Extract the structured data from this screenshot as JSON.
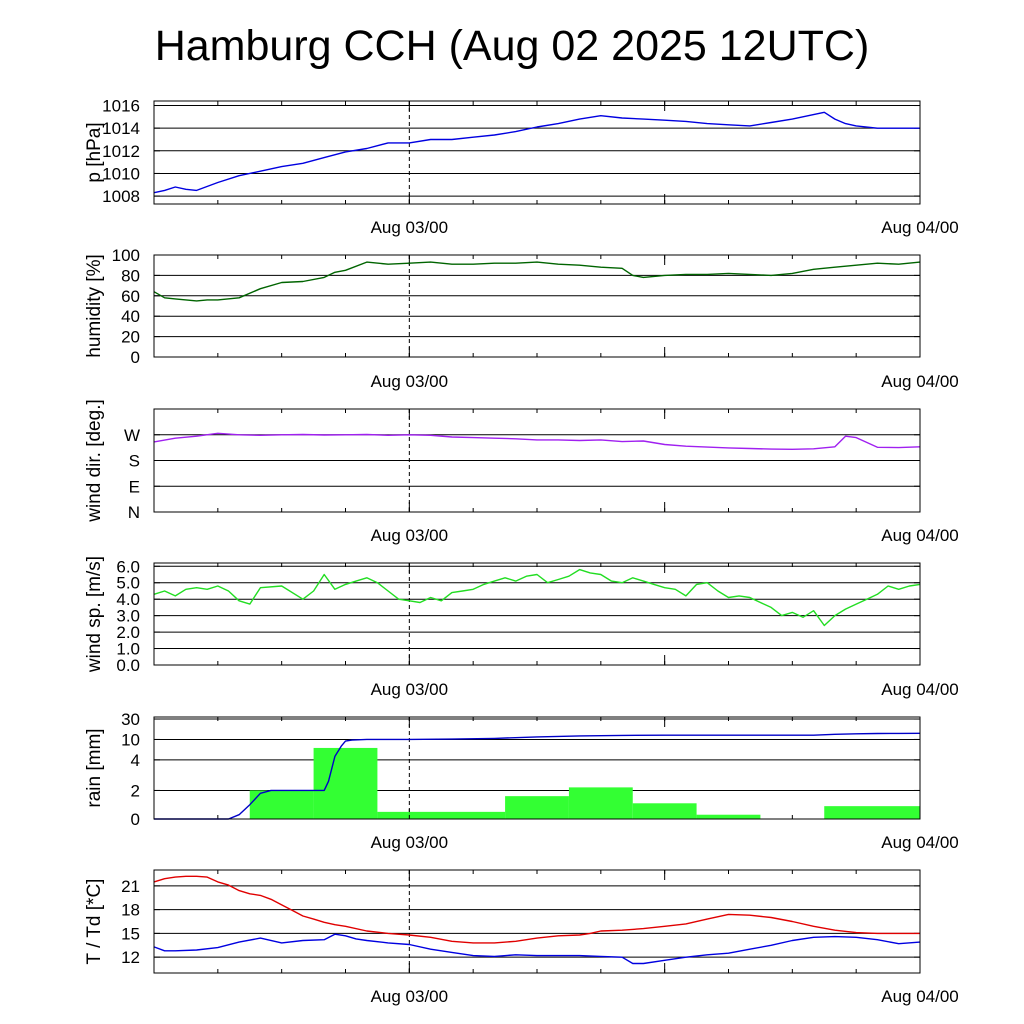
{
  "title": "Hamburg CCH (Aug 02 2025 12UTC)",
  "chart_data": [
    {
      "id": "pressure",
      "type": "line",
      "ylabel": "p [hPa]",
      "yticks": [
        1008,
        1010,
        1012,
        1014,
        1016
      ],
      "ylim": [
        1007.3,
        1016.4
      ],
      "x_range_hours": [
        0,
        36
      ],
      "xtick_labels": [
        "Aug 03/00",
        "Aug 04/00"
      ],
      "series": [
        {
          "color": "#0000e0",
          "x": [
            0,
            0.5,
            1,
            1.5,
            2,
            3,
            4,
            5,
            6,
            7,
            8,
            9,
            10,
            11,
            12,
            13,
            14,
            15,
            16,
            17,
            18,
            19,
            20,
            21,
            22,
            23,
            24,
            25,
            26,
            27,
            28,
            29,
            30,
            31,
            31.5,
            32,
            32.5,
            33,
            34,
            35,
            36
          ],
          "y": [
            1008.3,
            1008.5,
            1008.8,
            1008.6,
            1008.5,
            1009.2,
            1009.8,
            1010.2,
            1010.6,
            1010.9,
            1011.4,
            1011.9,
            1012.2,
            1012.7,
            1012.7,
            1013.0,
            1013.0,
            1013.2,
            1013.4,
            1013.7,
            1014.1,
            1014.4,
            1014.8,
            1015.1,
            1014.9,
            1014.8,
            1014.7,
            1014.6,
            1014.4,
            1014.3,
            1014.2,
            1014.5,
            1014.8,
            1015.2,
            1015.4,
            1014.8,
            1014.4,
            1014.2,
            1014.0,
            1014.0,
            1014.0
          ]
        }
      ]
    },
    {
      "id": "humidity",
      "type": "line",
      "ylabel": "humidity [%]",
      "yticks": [
        0,
        20,
        40,
        60,
        80,
        100
      ],
      "ylim": [
        0,
        100
      ],
      "x_range_hours": [
        0,
        36
      ],
      "xtick_labels": [
        "Aug 03/00",
        "Aug 04/00"
      ],
      "series": [
        {
          "color": "#006400",
          "x": [
            0,
            0.5,
            1,
            2,
            2.5,
            3,
            4,
            5,
            6,
            7,
            8,
            8.5,
            9,
            10,
            11,
            12,
            13,
            14,
            15,
            16,
            17,
            18,
            19,
            20,
            21,
            22,
            22.5,
            23,
            24,
            25,
            26,
            27,
            28,
            29,
            30,
            31,
            32,
            33,
            34,
            35,
            36
          ],
          "y": [
            64,
            58,
            57,
            55,
            56,
            56,
            58,
            67,
            73,
            74,
            78,
            83,
            85,
            93,
            91,
            92,
            93,
            91,
            91,
            92,
            92,
            93,
            91,
            90,
            88,
            87,
            80,
            78,
            80,
            81,
            81,
            82,
            81,
            80,
            82,
            86,
            88,
            90,
            92,
            91,
            93
          ]
        }
      ]
    },
    {
      "id": "wind_direction",
      "type": "line",
      "ylabel": "wind dir. [deg.]",
      "ytick_labels": [
        "N",
        "E",
        "S",
        "W"
      ],
      "yticks": [
        0,
        90,
        180,
        270
      ],
      "ylim": [
        0,
        360
      ],
      "x_range_hours": [
        0,
        36
      ],
      "xtick_labels": [
        "Aug 03/00",
        "Aug 04/00"
      ],
      "series": [
        {
          "color": "#a020f0",
          "x": [
            0,
            1,
            2,
            3,
            4,
            5,
            6,
            7,
            8,
            9,
            10,
            11,
            12,
            13,
            14,
            15,
            16,
            17,
            18,
            19,
            20,
            21,
            22,
            23,
            24,
            25,
            26,
            27,
            28,
            29,
            30,
            31,
            32,
            32.5,
            33,
            34,
            35,
            36
          ],
          "y": [
            245,
            258,
            265,
            275,
            270,
            268,
            270,
            271,
            269,
            270,
            271,
            268,
            270,
            268,
            262,
            260,
            258,
            256,
            252,
            252,
            250,
            252,
            246,
            248,
            236,
            230,
            227,
            224,
            222,
            220,
            219,
            221,
            228,
            265,
            260,
            226,
            225,
            228
          ]
        }
      ]
    },
    {
      "id": "wind_speed",
      "type": "line",
      "ylabel": "wind sp. [m/s]",
      "yticks": [
        0.0,
        1.0,
        2.0,
        3.0,
        4.0,
        5.0,
        6.0
      ],
      "ytick_labels": [
        "0.0",
        "1.0",
        "2.0",
        "3.0",
        "4.0",
        "5.0",
        "6.0"
      ],
      "ylim": [
        0,
        6.2
      ],
      "x_range_hours": [
        0,
        36
      ],
      "xtick_labels": [
        "Aug 03/00",
        "Aug 04/00"
      ],
      "series": [
        {
          "color": "#22dd22",
          "x": [
            0,
            0.5,
            1,
            1.5,
            2,
            2.5,
            3,
            3.5,
            4,
            4.5,
            5,
            6,
            7,
            7.5,
            8,
            8.5,
            9,
            9.5,
            10,
            10.5,
            11,
            11.5,
            12,
            12.5,
            13,
            13.5,
            14,
            14.5,
            15,
            15.5,
            16,
            16.5,
            17,
            17.5,
            18,
            18.5,
            19,
            19.5,
            20,
            20.5,
            21,
            21.5,
            22,
            22.5,
            23,
            23.5,
            24,
            24.5,
            25,
            25.5,
            26,
            26.5,
            27,
            27.5,
            28,
            28.5,
            29,
            29.5,
            30,
            30.5,
            31,
            31.5,
            32,
            32.5,
            33,
            33.5,
            34,
            34.5,
            35,
            35.5,
            36
          ],
          "y": [
            4.3,
            4.5,
            4.2,
            4.6,
            4.7,
            4.6,
            4.8,
            4.5,
            3.9,
            3.7,
            4.7,
            4.8,
            4.0,
            4.5,
            5.5,
            4.6,
            4.9,
            5.1,
            5.3,
            5.0,
            4.5,
            4.0,
            3.9,
            3.8,
            4.1,
            3.9,
            4.4,
            4.5,
            4.6,
            4.9,
            5.1,
            5.3,
            5.1,
            5.4,
            5.5,
            5.0,
            5.2,
            5.4,
            5.8,
            5.6,
            5.5,
            5.1,
            5.0,
            5.3,
            5.1,
            4.9,
            4.7,
            4.6,
            4.2,
            4.9,
            5.0,
            4.5,
            4.1,
            4.2,
            4.1,
            3.8,
            3.5,
            3.0,
            3.2,
            2.9,
            3.3,
            2.4,
            3.0,
            3.4,
            3.7,
            4.0,
            4.3,
            4.8,
            4.6,
            4.8,
            4.9
          ]
        }
      ]
    },
    {
      "id": "rain",
      "type": "bar+line",
      "ylabel": "rain [mm]",
      "yticks": [
        0,
        2,
        4,
        10,
        30
      ],
      "x_range_hours": [
        0,
        36
      ],
      "xtick_labels": [
        "Aug 03/00",
        "Aug 04/00"
      ],
      "bars": {
        "color": "#33ff33",
        "intervals_hours": [
          [
            4.5,
            7.5
          ],
          [
            7.5,
            10.5
          ],
          [
            10.5,
            12
          ],
          [
            12,
            16.5
          ],
          [
            16.5,
            19.5
          ],
          [
            19.5,
            22.5
          ],
          [
            22.5,
            25.5
          ],
          [
            25.5,
            28.5
          ],
          [
            28.5,
            31.5
          ],
          [
            31.5,
            36
          ]
        ],
        "values": [
          2.0,
          7.5,
          0.5,
          0.5,
          1.6,
          2.2,
          1.1,
          0.3,
          0.0,
          0.9
        ]
      },
      "series": [
        {
          "color": "#0000c8",
          "x": [
            0,
            3.5,
            4,
            4.5,
            5,
            5.5,
            7,
            8,
            8.2,
            8.5,
            8.8,
            9,
            9.3,
            10,
            11,
            12,
            14,
            16,
            18,
            20,
            22,
            24,
            26,
            28,
            30,
            31,
            32,
            33,
            34,
            35,
            36
          ],
          "y": [
            0,
            0,
            0.3,
            1.0,
            1.8,
            2.0,
            2.0,
            2.0,
            2.6,
            5.0,
            8.0,
            9.5,
            9.8,
            10.0,
            10.0,
            10.0,
            10.3,
            11.0,
            12.5,
            13.5,
            14.0,
            14.2,
            14.2,
            14.2,
            14.2,
            14.2,
            15.0,
            15.5,
            15.8,
            15.9,
            16.0
          ]
        }
      ]
    },
    {
      "id": "temperature",
      "type": "line",
      "ylabel": "T / Td [*C]",
      "yticks": [
        12,
        15,
        18,
        21
      ],
      "ylim": [
        10,
        23
      ],
      "x_range_hours": [
        0,
        36
      ],
      "xtick_labels": [
        "Aug 03/00",
        "Aug 04/00"
      ],
      "series": [
        {
          "color": "#e00000",
          "x": [
            0,
            0.5,
            1,
            1.5,
            2,
            2.5,
            3,
            3.5,
            4,
            4.5,
            5,
            5.5,
            6,
            6.5,
            7,
            7.5,
            8,
            8.5,
            9,
            10,
            11,
            12,
            13,
            14,
            15,
            16,
            17,
            18,
            19,
            20,
            20.5,
            21,
            22,
            23,
            24,
            25,
            26,
            27,
            28,
            29,
            30,
            31,
            32,
            33,
            34,
            35,
            36
          ],
          "y": [
            21.5,
            21.9,
            22.1,
            22.2,
            22.2,
            22.1,
            21.5,
            21.1,
            20.4,
            20.0,
            19.8,
            19.3,
            18.6,
            17.9,
            17.2,
            16.8,
            16.4,
            16.1,
            15.9,
            15.3,
            15.0,
            14.8,
            14.5,
            14.0,
            13.8,
            13.8,
            14.0,
            14.4,
            14.7,
            14.8,
            15.0,
            15.3,
            15.4,
            15.6,
            15.9,
            16.2,
            16.8,
            17.4,
            17.3,
            17.0,
            16.5,
            15.9,
            15.4,
            15.1,
            15.0,
            15.0,
            15.0
          ]
        },
        {
          "color": "#0000e0",
          "x": [
            0,
            0.5,
            1,
            2,
            3,
            4,
            5,
            6,
            7,
            8,
            8.5,
            9,
            9.5,
            10,
            11,
            12,
            13,
            14,
            15,
            16,
            17,
            18,
            19,
            20,
            21,
            22,
            22.5,
            23,
            24,
            25,
            26,
            27,
            28,
            29,
            30,
            31,
            32,
            33,
            34,
            35,
            36
          ],
          "y": [
            13.3,
            12.8,
            12.8,
            12.9,
            13.2,
            13.9,
            14.4,
            13.8,
            14.1,
            14.2,
            14.9,
            14.7,
            14.3,
            14.1,
            13.8,
            13.6,
            13.0,
            12.6,
            12.2,
            12.1,
            12.3,
            12.2,
            12.2,
            12.2,
            12.1,
            12.0,
            11.2,
            11.2,
            11.6,
            12.0,
            12.3,
            12.5,
            13.0,
            13.5,
            14.1,
            14.5,
            14.6,
            14.5,
            14.2,
            13.7,
            13.9
          ]
        }
      ]
    }
  ]
}
